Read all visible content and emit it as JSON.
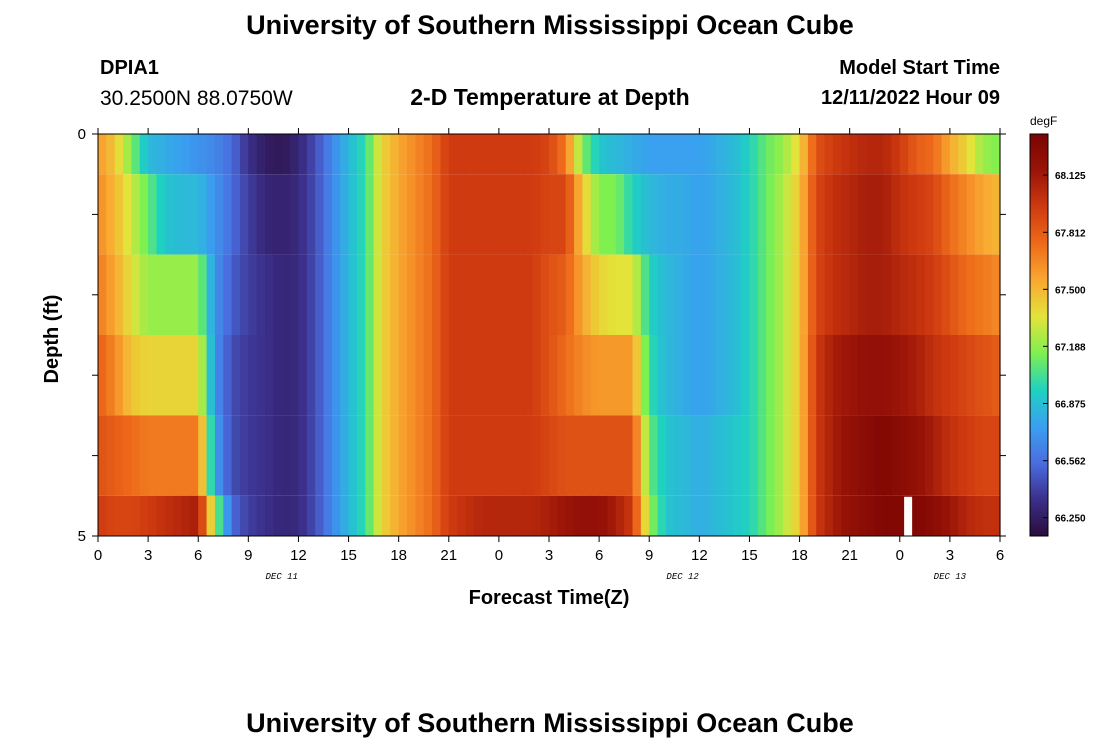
{
  "header": {
    "title": "University of Southern Mississippi Ocean Cube",
    "station_id": "DPIA1",
    "station_coords": "30.2500N  88.0750W",
    "chart_title": "2-D Temperature at Depth",
    "model_start_label": "Model Start Time",
    "model_start_value": "12/11/2022 Hour 09"
  },
  "footer": {
    "title": "University of Southern Mississippi Ocean Cube"
  },
  "chart_data": {
    "type": "heatmap",
    "title": "2-D Temperature at Depth",
    "xlabel": "Forecast Time(Z)",
    "ylabel": "Depth (ft)",
    "x_range_hours": [
      0,
      54
    ],
    "y_range": [
      0,
      5
    ],
    "y_tick_labels": [
      "0",
      "5"
    ],
    "x_tick_labels": [
      "0",
      "3",
      "6",
      "9",
      "12",
      "15",
      "18",
      "21",
      "0",
      "3",
      "6",
      "9",
      "12",
      "15",
      "18",
      "21",
      "0",
      "3",
      "6"
    ],
    "date_labels": [
      {
        "label": "DEC 11",
        "hour": 11
      },
      {
        "label": "DEC 12",
        "hour": 35
      },
      {
        "label": "DEC 13",
        "hour": 51
      }
    ],
    "colorbar": {
      "units": "degF",
      "range": [
        66.15,
        68.35
      ],
      "ticks": [
        "66.250",
        "66.562",
        "66.875",
        "67.188",
        "67.500",
        "67.812",
        "68.125"
      ],
      "colors": [
        "#2a0c3a",
        "#3b2f8a",
        "#4a6de0",
        "#3aa0f0",
        "#1fd2c0",
        "#7ef050",
        "#e3e33a",
        "#f9a831",
        "#ee6a1a",
        "#cf3a10",
        "#9a1408",
        "#7a0403"
      ]
    },
    "depth_rows": [
      {
        "band": [
          0.0,
          0.5
        ],
        "values_by_hour": [
          67.6,
          67.45,
          67.15,
          66.85,
          66.8,
          66.75,
          66.7,
          66.65,
          66.55,
          66.35,
          66.25,
          66.22,
          66.3,
          66.45,
          66.65,
          66.85,
          67.0,
          67.4,
          67.55,
          67.65,
          67.75,
          67.95,
          67.95,
          67.95,
          67.95,
          67.95,
          67.95,
          67.9,
          67.7,
          67.15,
          66.9,
          66.85,
          66.8,
          66.75,
          66.75,
          66.75,
          66.75,
          66.8,
          66.85,
          66.95,
          67.1,
          67.2,
          67.4,
          67.85,
          67.95,
          68.0,
          68.05,
          68.05,
          67.95,
          67.8,
          67.75,
          67.55,
          67.4,
          67.2,
          67.15
        ]
      },
      {
        "band": [
          0.5,
          1.5
        ],
        "values_by_hour": [
          67.65,
          67.5,
          67.3,
          67.1,
          66.9,
          66.85,
          66.85,
          66.7,
          66.55,
          66.4,
          66.3,
          66.28,
          66.32,
          66.45,
          66.65,
          66.85,
          67.0,
          67.4,
          67.55,
          67.65,
          67.75,
          67.95,
          67.95,
          67.95,
          67.95,
          67.95,
          67.95,
          67.9,
          67.9,
          67.45,
          67.15,
          67.15,
          66.95,
          66.85,
          66.8,
          66.8,
          66.75,
          66.8,
          66.85,
          66.95,
          67.1,
          67.25,
          67.45,
          67.9,
          68.0,
          68.05,
          68.1,
          68.1,
          68.0,
          67.95,
          67.9,
          67.75,
          67.65,
          67.55,
          67.5
        ]
      },
      {
        "band": [
          1.5,
          2.5
        ],
        "values_by_hour": [
          67.7,
          67.55,
          67.35,
          67.2,
          67.2,
          67.2,
          67.2,
          66.7,
          66.5,
          66.4,
          66.35,
          66.3,
          66.32,
          66.45,
          66.65,
          66.85,
          67.0,
          67.4,
          67.55,
          67.65,
          67.75,
          67.95,
          67.95,
          67.95,
          67.95,
          67.95,
          67.95,
          67.85,
          67.8,
          67.55,
          67.4,
          67.35,
          67.35,
          66.95,
          66.85,
          66.8,
          66.75,
          66.8,
          66.85,
          66.95,
          67.1,
          67.25,
          67.45,
          67.9,
          68.0,
          68.05,
          68.1,
          68.1,
          68.05,
          68.0,
          67.95,
          67.85,
          67.75,
          67.7,
          67.65
        ]
      },
      {
        "band": [
          2.5,
          3.5
        ],
        "values_by_hour": [
          67.8,
          67.65,
          67.45,
          67.4,
          67.4,
          67.4,
          67.4,
          66.7,
          66.45,
          66.38,
          66.35,
          66.3,
          66.32,
          66.45,
          66.65,
          66.85,
          67.0,
          67.4,
          67.55,
          67.65,
          67.75,
          67.95,
          67.95,
          67.95,
          67.95,
          67.95,
          67.95,
          67.85,
          67.75,
          67.65,
          67.6,
          67.6,
          67.6,
          67.0,
          66.85,
          66.8,
          66.75,
          66.8,
          66.85,
          66.95,
          67.1,
          67.25,
          67.45,
          67.95,
          68.1,
          68.15,
          68.2,
          68.2,
          68.15,
          68.1,
          68.0,
          67.95,
          67.9,
          67.85,
          67.8
        ]
      },
      {
        "band": [
          3.5,
          4.5
        ],
        "values_by_hour": [
          67.85,
          67.8,
          67.75,
          67.7,
          67.7,
          67.7,
          67.7,
          66.75,
          66.45,
          66.38,
          66.35,
          66.3,
          66.32,
          66.45,
          66.65,
          66.85,
          67.0,
          67.4,
          67.55,
          67.65,
          67.75,
          67.95,
          67.95,
          67.95,
          67.95,
          67.95,
          67.95,
          67.9,
          67.85,
          67.85,
          67.85,
          67.85,
          67.85,
          67.1,
          66.9,
          66.85,
          66.8,
          66.85,
          66.9,
          66.95,
          67.1,
          67.25,
          67.45,
          67.95,
          68.1,
          68.2,
          68.25,
          68.3,
          68.25,
          68.2,
          68.1,
          68.0,
          67.95,
          67.9,
          67.9
        ]
      },
      {
        "band": [
          4.5,
          5.0
        ],
        "values_by_hour": [
          67.95,
          67.9,
          67.9,
          67.95,
          68.0,
          68.05,
          68.1,
          67.2,
          66.55,
          66.4,
          66.35,
          66.3,
          66.32,
          66.45,
          66.65,
          66.85,
          67.0,
          67.4,
          67.55,
          67.65,
          67.75,
          67.95,
          68.0,
          68.05,
          68.05,
          68.05,
          68.05,
          68.1,
          68.15,
          68.2,
          68.2,
          68.1,
          67.95,
          67.2,
          66.9,
          66.85,
          66.8,
          66.85,
          66.9,
          66.95,
          67.1,
          67.25,
          67.45,
          67.95,
          68.1,
          68.2,
          68.25,
          68.3,
          68.3,
          68.3,
          68.25,
          68.15,
          68.05,
          68.0,
          68.0
        ]
      }
    ],
    "missing_cells": [
      {
        "hour": 48.5,
        "band": [
          4.5,
          5.0
        ]
      }
    ]
  }
}
